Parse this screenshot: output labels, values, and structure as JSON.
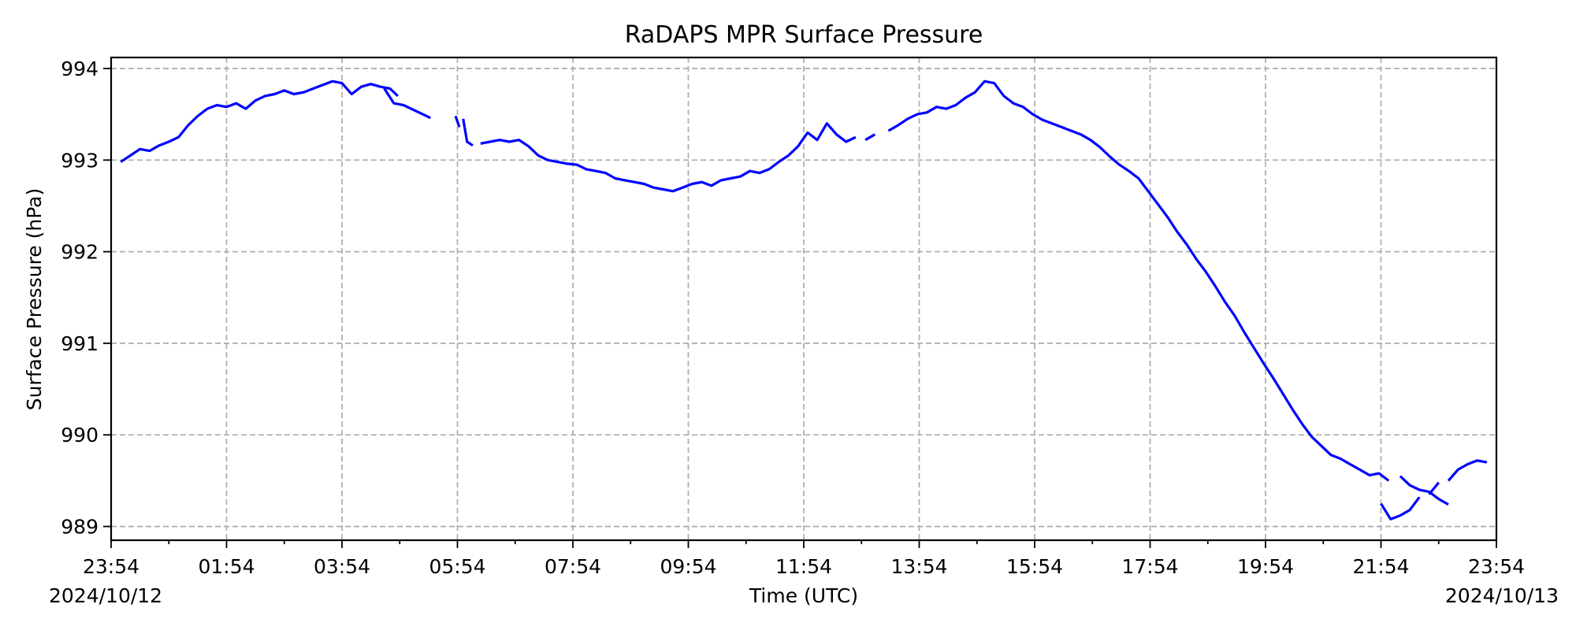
{
  "chart_data": {
    "type": "line",
    "title": "RaDAPS MPR Surface Pressure",
    "xlabel": "Time (UTC)",
    "ylabel": "Surface Pressure (hPa)",
    "start_date_label": "2024/10/12",
    "end_date_label": "2024/10/13",
    "x_tick_labels": [
      "23:54",
      "01:54",
      "03:54",
      "05:54",
      "07:54",
      "09:54",
      "11:54",
      "13:54",
      "15:54",
      "17:54",
      "19:54",
      "21:54",
      "23:54"
    ],
    "xlim": [
      "2024-10-12 23:54",
      "2024-10-13 23:54"
    ],
    "ylim": [
      988.85,
      994.12
    ],
    "y_ticks": [
      989,
      990,
      991,
      992,
      993,
      994
    ],
    "grid": true,
    "color": "#0000ff",
    "series": [
      {
        "segments": [
          [
            [
              "2024-10-13 00:04",
              992.98
            ],
            [
              "2024-10-13 00:14",
              993.05
            ],
            [
              "2024-10-13 00:24",
              993.12
            ],
            [
              "2024-10-13 00:34",
              993.1
            ],
            [
              "2024-10-13 00:44",
              993.16
            ],
            [
              "2024-10-13 00:54",
              993.2
            ],
            [
              "2024-10-13 01:04",
              993.25
            ],
            [
              "2024-10-13 01:14",
              993.38
            ],
            [
              "2024-10-13 01:24",
              993.48
            ],
            [
              "2024-10-13 01:34",
              993.56
            ],
            [
              "2024-10-13 01:44",
              993.6
            ],
            [
              "2024-10-13 01:54",
              993.58
            ],
            [
              "2024-10-13 02:04",
              993.62
            ],
            [
              "2024-10-13 02:14",
              993.56
            ],
            [
              "2024-10-13 02:24",
              993.65
            ],
            [
              "2024-10-13 02:34",
              993.7
            ],
            [
              "2024-10-13 02:44",
              993.72
            ],
            [
              "2024-10-13 02:54",
              993.76
            ],
            [
              "2024-10-13 03:04",
              993.72
            ],
            [
              "2024-10-13 03:14",
              993.74
            ],
            [
              "2024-10-13 03:24",
              993.78
            ],
            [
              "2024-10-13 03:34",
              993.82
            ],
            [
              "2024-10-13 03:44",
              993.86
            ],
            [
              "2024-10-13 03:54",
              993.84
            ],
            [
              "2024-10-13 04:04",
              993.72
            ],
            [
              "2024-10-13 04:14",
              993.8
            ],
            [
              "2024-10-13 04:24",
              993.83
            ],
            [
              "2024-10-13 04:34",
              993.8
            ],
            [
              "2024-10-13 04:44",
              993.78
            ],
            [
              "2024-10-13 04:52",
              993.7
            ]
          ],
          [
            [
              "2024-10-13 04:38",
              993.78
            ],
            [
              "2024-10-13 04:48",
              993.62
            ],
            [
              "2024-10-13 04:58",
              993.6
            ],
            [
              "2024-10-13 05:08",
              993.55
            ],
            [
              "2024-10-13 05:18",
              993.5
            ],
            [
              "2024-10-13 05:26",
              993.46
            ]
          ],
          [
            [
              "2024-10-13 05:52",
              993.48
            ],
            [
              "2024-10-13 05:56",
              993.36
            ]
          ],
          [
            [
              "2024-10-13 06:00",
              993.45
            ],
            [
              "2024-10-13 06:04",
              993.2
            ],
            [
              "2024-10-13 06:10",
              993.16
            ]
          ],
          [
            [
              "2024-10-13 06:18",
              993.18
            ],
            [
              "2024-10-13 06:28",
              993.2
            ],
            [
              "2024-10-13 06:38",
              993.22
            ],
            [
              "2024-10-13 06:48",
              993.2
            ],
            [
              "2024-10-13 06:58",
              993.22
            ],
            [
              "2024-10-13 07:08",
              993.15
            ],
            [
              "2024-10-13 07:18",
              993.05
            ],
            [
              "2024-10-13 07:28",
              993.0
            ],
            [
              "2024-10-13 07:38",
              992.98
            ],
            [
              "2024-10-13 07:48",
              992.96
            ],
            [
              "2024-10-13 07:58",
              992.95
            ],
            [
              "2024-10-13 08:08",
              992.9
            ],
            [
              "2024-10-13 08:18",
              992.88
            ],
            [
              "2024-10-13 08:28",
              992.86
            ],
            [
              "2024-10-13 08:38",
              992.8
            ],
            [
              "2024-10-13 08:48",
              992.78
            ],
            [
              "2024-10-13 08:58",
              992.76
            ],
            [
              "2024-10-13 09:08",
              992.74
            ],
            [
              "2024-10-13 09:18",
              992.7
            ],
            [
              "2024-10-13 09:28",
              992.68
            ],
            [
              "2024-10-13 09:38",
              992.66
            ],
            [
              "2024-10-13 09:48",
              992.7
            ],
            [
              "2024-10-13 09:58",
              992.74
            ],
            [
              "2024-10-13 10:08",
              992.76
            ],
            [
              "2024-10-13 10:18",
              992.72
            ],
            [
              "2024-10-13 10:28",
              992.78
            ],
            [
              "2024-10-13 10:38",
              992.8
            ],
            [
              "2024-10-13 10:48",
              992.82
            ],
            [
              "2024-10-13 10:58",
              992.88
            ],
            [
              "2024-10-13 11:08",
              992.86
            ],
            [
              "2024-10-13 11:18",
              992.9
            ],
            [
              "2024-10-13 11:28",
              992.98
            ],
            [
              "2024-10-13 11:38",
              993.05
            ],
            [
              "2024-10-13 11:48",
              993.15
            ],
            [
              "2024-10-13 11:58",
              993.3
            ],
            [
              "2024-10-13 12:08",
              993.22
            ],
            [
              "2024-10-13 12:18",
              993.4
            ],
            [
              "2024-10-13 12:28",
              993.28
            ],
            [
              "2024-10-13 12:38",
              993.2
            ],
            [
              "2024-10-13 12:48",
              993.25
            ]
          ],
          [
            [
              "2024-10-13 12:58",
              993.22
            ],
            [
              "2024-10-13 13:08",
              993.28
            ]
          ],
          [
            [
              "2024-10-13 13:22",
              993.32
            ],
            [
              "2024-10-13 13:32",
              993.38
            ],
            [
              "2024-10-13 13:42",
              993.45
            ],
            [
              "2024-10-13 13:52",
              993.5
            ],
            [
              "2024-10-13 14:02",
              993.52
            ],
            [
              "2024-10-13 14:12",
              993.58
            ],
            [
              "2024-10-13 14:22",
              993.56
            ],
            [
              "2024-10-13 14:32",
              993.6
            ],
            [
              "2024-10-13 14:42",
              993.68
            ],
            [
              "2024-10-13 14:52",
              993.74
            ],
            [
              "2024-10-13 15:02",
              993.86
            ],
            [
              "2024-10-13 15:12",
              993.84
            ],
            [
              "2024-10-13 15:22",
              993.7
            ],
            [
              "2024-10-13 15:32",
              993.62
            ],
            [
              "2024-10-13 15:42",
              993.58
            ],
            [
              "2024-10-13 15:52",
              993.5
            ],
            [
              "2024-10-13 16:02",
              993.44
            ],
            [
              "2024-10-13 16:12",
              993.4
            ],
            [
              "2024-10-13 16:22",
              993.36
            ],
            [
              "2024-10-13 16:32",
              993.32
            ],
            [
              "2024-10-13 16:42",
              993.28
            ],
            [
              "2024-10-13 16:52",
              993.22
            ],
            [
              "2024-10-13 17:02",
              993.14
            ],
            [
              "2024-10-13 17:12",
              993.04
            ],
            [
              "2024-10-13 17:22",
              992.95
            ],
            [
              "2024-10-13 17:32",
              992.88
            ],
            [
              "2024-10-13 17:42",
              992.8
            ],
            [
              "2024-10-13 17:52",
              992.66
            ],
            [
              "2024-10-13 18:02",
              992.52
            ],
            [
              "2024-10-13 18:12",
              992.38
            ],
            [
              "2024-10-13 18:22",
              992.22
            ],
            [
              "2024-10-13 18:32",
              992.08
            ],
            [
              "2024-10-13 18:42",
              991.92
            ],
            [
              "2024-10-13 18:52",
              991.78
            ],
            [
              "2024-10-13 19:02",
              991.62
            ],
            [
              "2024-10-13 19:12",
              991.45
            ],
            [
              "2024-10-13 19:22",
              991.3
            ],
            [
              "2024-10-13 19:32",
              991.12
            ],
            [
              "2024-10-13 19:42",
              990.95
            ],
            [
              "2024-10-13 19:52",
              990.78
            ],
            [
              "2024-10-13 20:02",
              990.62
            ],
            [
              "2024-10-13 20:12",
              990.45
            ],
            [
              "2024-10-13 20:22",
              990.28
            ],
            [
              "2024-10-13 20:32",
              990.12
            ],
            [
              "2024-10-13 20:42",
              989.98
            ],
            [
              "2024-10-13 20:52",
              989.88
            ],
            [
              "2024-10-13 21:02",
              989.78
            ],
            [
              "2024-10-13 21:12",
              989.74
            ],
            [
              "2024-10-13 21:22",
              989.68
            ],
            [
              "2024-10-13 21:32",
              989.62
            ],
            [
              "2024-10-13 21:42",
              989.56
            ],
            [
              "2024-10-13 21:52",
              989.58
            ],
            [
              "2024-10-13 22:02",
              989.5
            ]
          ],
          [
            [
              "2024-10-13 22:14",
              989.55
            ],
            [
              "2024-10-13 22:24",
              989.45
            ],
            [
              "2024-10-13 22:34",
              989.4
            ],
            [
              "2024-10-13 22:44",
              989.38
            ],
            [
              "2024-10-13 22:54",
              989.3
            ],
            [
              "2024-10-13 23:04",
              989.24
            ]
          ],
          [
            [
              "2024-10-13 21:54",
              989.25
            ],
            [
              "2024-10-13 22:04",
              989.08
            ],
            [
              "2024-10-13 22:14",
              989.12
            ],
            [
              "2024-10-13 22:24",
              989.18
            ],
            [
              "2024-10-13 22:34",
              989.32
            ]
          ],
          [
            [
              "2024-10-13 22:44",
              989.35
            ],
            [
              "2024-10-13 22:54",
              989.48
            ]
          ],
          [
            [
              "2024-10-13 23:04",
              989.5
            ],
            [
              "2024-10-13 23:14",
              989.62
            ],
            [
              "2024-10-13 23:24",
              989.68
            ],
            [
              "2024-10-13 23:34",
              989.72
            ],
            [
              "2024-10-13 23:44",
              989.7
            ]
          ]
        ]
      }
    ]
  }
}
